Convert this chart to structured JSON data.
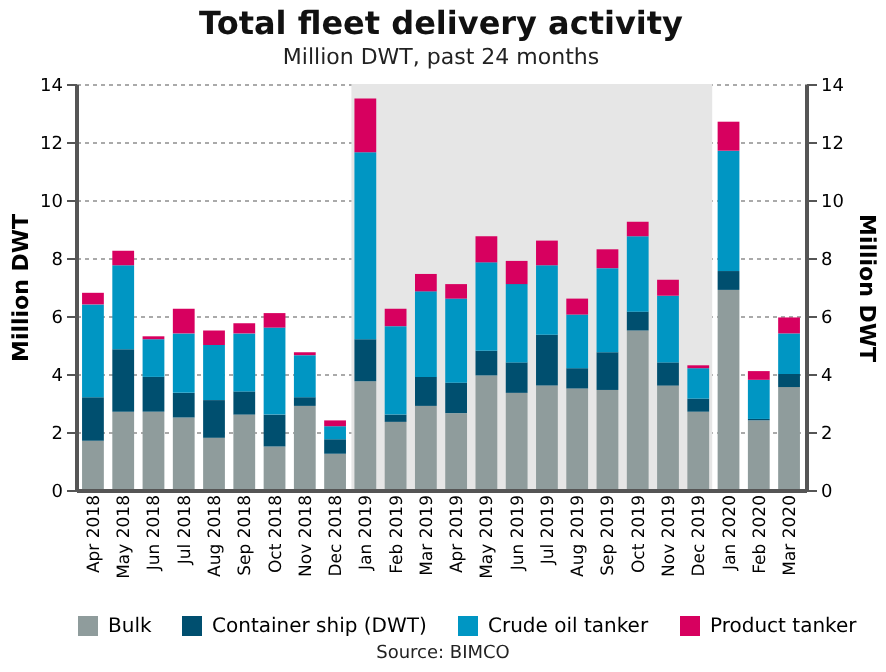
{
  "chart_data": {
    "type": "bar",
    "title": "Total fleet delivery activity",
    "subtitle": "Million DWT, past 24 months",
    "ylabel": "Million DWT",
    "y2label": "Million DWT",
    "annotations": [
      "Source: BIMCO"
    ],
    "categories": [
      "Apr 2018",
      "May 2018",
      "Jun 2018",
      "Jul 2018",
      "Aug 2018",
      "Sep 2018",
      "Oct 2018",
      "Nov 2018",
      "Dec 2018",
      "Jan 2019",
      "Feb 2019",
      "Mar 2019",
      "Apr 2019",
      "May 2019",
      "Jun 2019",
      "Jul 2019",
      "Aug 2019",
      "Sep 2019",
      "Oct 2019",
      "Nov 2019",
      "Dec 2019",
      "Jan 2020",
      "Feb 2020",
      "Mar 2020"
    ],
    "stacked": true,
    "series": [
      {
        "name": "Bulk",
        "color": "#8f9c9c",
        "values": [
          1.7,
          2.7,
          2.7,
          2.5,
          1.8,
          2.6,
          1.5,
          2.9,
          1.25,
          3.75,
          2.35,
          2.9,
          2.65,
          3.95,
          3.35,
          3.6,
          3.5,
          3.45,
          5.5,
          3.6,
          2.7,
          6.9,
          2.4,
          3.55
        ]
      },
      {
        "name": "Container ship (DWT)",
        "color": "#004f6f",
        "values": [
          1.5,
          2.15,
          1.2,
          0.85,
          1.3,
          0.8,
          1.1,
          0.3,
          0.5,
          1.45,
          0.25,
          1.0,
          1.05,
          0.85,
          1.05,
          1.75,
          0.7,
          1.3,
          0.65,
          0.8,
          0.45,
          0.65,
          0.05,
          0.45
        ]
      },
      {
        "name": "Crude oil tanker",
        "color": "#0096c3",
        "values": [
          3.2,
          2.9,
          1.3,
          2.05,
          1.9,
          2.0,
          3.0,
          1.45,
          0.45,
          6.45,
          3.05,
          2.95,
          2.9,
          3.05,
          2.7,
          2.4,
          1.85,
          2.9,
          2.6,
          2.3,
          1.05,
          4.15,
          1.35,
          1.4
        ]
      },
      {
        "name": "Product tanker",
        "color": "#d7005f",
        "values": [
          0.4,
          0.5,
          0.1,
          0.85,
          0.5,
          0.35,
          0.5,
          0.1,
          0.2,
          1.85,
          0.6,
          0.6,
          0.5,
          0.9,
          0.8,
          0.85,
          0.55,
          0.65,
          0.5,
          0.55,
          0.1,
          1.0,
          0.3,
          0.55
        ]
      }
    ],
    "ylim": [
      0,
      14
    ],
    "yticks": [
      0,
      2,
      4,
      6,
      8,
      10,
      12,
      14
    ],
    "y2lim": [
      0,
      14
    ],
    "y2ticks": [
      0,
      2,
      4,
      6,
      8,
      10,
      12,
      14
    ],
    "bands": [
      {
        "axis": "x",
        "from": "Jan 2019",
        "to": "Dec 2019",
        "color": "#e6e6e6"
      }
    ],
    "grid": "y",
    "legend": "bottom"
  }
}
